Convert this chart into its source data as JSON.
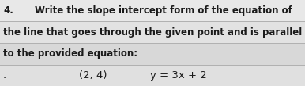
{
  "number": "4.",
  "line1": "Write the slope intercept form of the equation of",
  "line2": "the line that goes through the given point and is parallel",
  "line3": "to the provided equation:",
  "line4_point": "(2, 4)",
  "line4_eq": "y = 3x + 2",
  "background_color": "#dcdcdc",
  "row_bg": [
    "#e8e8e8",
    "#e0e0e0",
    "#d8d8d8",
    "#e4e4e4"
  ],
  "text_color": "#1a1a1a",
  "font_size_main": 8.5,
  "font_size_math": 9.5,
  "line_color": "#b0b0b0",
  "fig_width": 3.86,
  "fig_height": 1.1,
  "dpi": 100
}
